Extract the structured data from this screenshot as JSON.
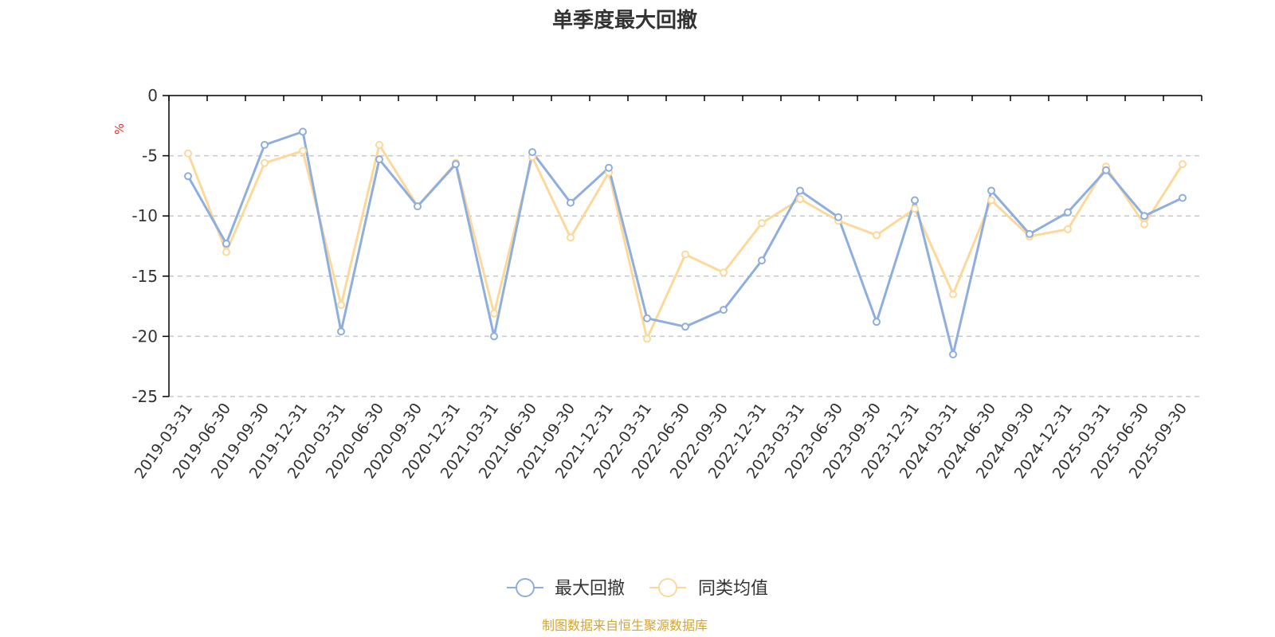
{
  "chart_data": {
    "type": "line",
    "title": "单季度最大回撤",
    "ylabel": "%",
    "ylim": [
      -25,
      0
    ],
    "yticks": [
      0,
      -5,
      -10,
      -15,
      -20,
      -25
    ],
    "ytick_labels": [
      "0",
      "-5",
      "-10",
      "-15",
      "-20",
      "-25"
    ],
    "grid": true,
    "legend_position": "bottom-center",
    "categories": [
      "2019-03-31",
      "2019-06-30",
      "2019-09-30",
      "2019-12-31",
      "2020-03-31",
      "2020-06-30",
      "2020-09-30",
      "2020-12-31",
      "2021-03-31",
      "2021-06-30",
      "2021-09-30",
      "2021-12-31",
      "2022-03-31",
      "2022-06-30",
      "2022-09-30",
      "2022-12-31",
      "2023-03-31",
      "2023-06-30",
      "2023-09-30",
      "2023-12-31",
      "2024-03-31",
      "2024-06-30",
      "2024-09-30",
      "2024-12-31",
      "2025-03-31",
      "2025-06-30",
      "2025-09-30"
    ],
    "series": [
      {
        "name": "最大回撤",
        "color": "#8eaedd",
        "values": [
          -6.7,
          -12.3,
          -4.1,
          -3.0,
          -19.6,
          -5.3,
          -9.2,
          -5.7,
          -20.0,
          -4.7,
          -8.9,
          -6.0,
          -18.5,
          -19.2,
          -17.8,
          -13.7,
          -7.9,
          -10.1,
          -18.8,
          -8.7,
          -21.5,
          -7.9,
          -11.5,
          -9.7,
          -6.2,
          -10.0,
          -8.5
        ]
      },
      {
        "name": "同类均值",
        "color": "#fcd99a",
        "values": [
          -4.8,
          -13.0,
          -5.6,
          -4.6,
          -17.4,
          -4.1,
          -9.2,
          -5.6,
          -18.1,
          -5.1,
          -11.8,
          -6.4,
          -20.2,
          -13.2,
          -14.7,
          -10.6,
          -8.6,
          -10.4,
          -11.6,
          -9.4,
          -16.5,
          -8.7,
          -11.7,
          -11.1,
          -5.9,
          -10.7,
          -5.7
        ]
      }
    ],
    "source_note": "制图数据来自恒生聚源数据库",
    "colors": {
      "axis": "#000000",
      "grid": "#c8c8c8",
      "unit": "#e0332e",
      "source": "#d6a431"
    }
  }
}
